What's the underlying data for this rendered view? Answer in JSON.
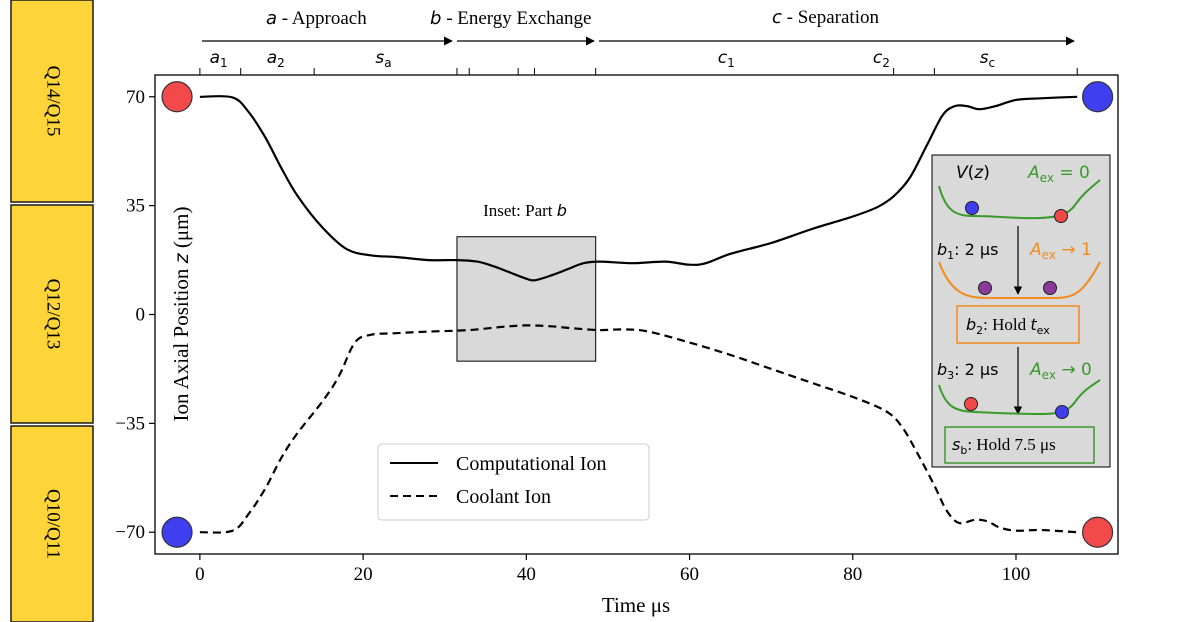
{
  "colors": {
    "computational": "#000000",
    "coolant": "#000000",
    "ion_red": "#f24a4a",
    "ion_blue": "#3f3ff0",
    "ion_purple": "#8a3a9a",
    "zone_fill": "#fdd53a",
    "zone_border": "#1a1a1a",
    "inset_fill": "#d9d9d9",
    "green": "#3a9a2c",
    "orange": "#f28a1c"
  },
  "zones": [
    {
      "label": "Q14/Q15"
    },
    {
      "label": "Q12/Q13"
    },
    {
      "label": "Q10/Q11"
    }
  ],
  "phases": {
    "a": {
      "letter": "a",
      "text": " - Approach"
    },
    "b": {
      "letter": "b",
      "text": " - Energy Exchange"
    },
    "c": {
      "letter": "c",
      "text": " - Separation"
    }
  },
  "subphases": [
    {
      "base": "a",
      "sub": "1",
      "t": 2.3
    },
    {
      "base": "a",
      "sub": "2",
      "t": 9.3
    },
    {
      "base": "s",
      "sub": "a",
      "t": 22.5
    },
    {
      "base": "c",
      "sub": "1",
      "t": 64.5
    },
    {
      "base": "c",
      "sub": "2",
      "t": 83.5
    },
    {
      "base": "s",
      "sub": "c",
      "t": 96.5
    }
  ],
  "top_ticks": [
    0,
    5,
    14,
    31.5,
    33,
    39,
    41,
    48.5,
    85,
    90,
    107.5
  ],
  "inset_label": {
    "prefix": "Inset: Part ",
    "letter": "b"
  },
  "chart_data": {
    "type": "line",
    "xlabel_prefix": "Time ",
    "xlabel_unit": "μs",
    "ylabel_prefix": "Ion Axial Position ",
    "ylabel_var": "z",
    "ylabel_unit": " (μm)",
    "xlim": [
      -5.5,
      112.5
    ],
    "ylim": [
      -77,
      77
    ],
    "xticks": [
      0,
      20,
      40,
      60,
      80,
      100
    ],
    "yticks": [
      70,
      35,
      0,
      -35,
      -70
    ],
    "ytick_labels": [
      "70",
      "35",
      "0",
      "−35",
      "−70"
    ],
    "legend_position": "bottom-center",
    "series": [
      {
        "name": "Computational Ion",
        "style": "solid",
        "points": [
          [
            0,
            70
          ],
          [
            4,
            69.8
          ],
          [
            6,
            65
          ],
          [
            8,
            57
          ],
          [
            10,
            47
          ],
          [
            12,
            38
          ],
          [
            15,
            28
          ],
          [
            18,
            21
          ],
          [
            21,
            19
          ],
          [
            24,
            18.5
          ],
          [
            28,
            17.5
          ],
          [
            31.5,
            17.5
          ],
          [
            34,
            17
          ],
          [
            36,
            15.5
          ],
          [
            38,
            13.5
          ],
          [
            40,
            11.5
          ],
          [
            41,
            11
          ],
          [
            43,
            12.5
          ],
          [
            45,
            14.5
          ],
          [
            47,
            16.5
          ],
          [
            49,
            17
          ],
          [
            53,
            16.5
          ],
          [
            57,
            17
          ],
          [
            60,
            16
          ],
          [
            62,
            16.5
          ],
          [
            65,
            19.5
          ],
          [
            70,
            23
          ],
          [
            75,
            27.5
          ],
          [
            80,
            31.5
          ],
          [
            83,
            34.5
          ],
          [
            85,
            38
          ],
          [
            87,
            44
          ],
          [
            89,
            54
          ],
          [
            91,
            64
          ],
          [
            92.5,
            67
          ],
          [
            94,
            67
          ],
          [
            95.5,
            66
          ],
          [
            97.5,
            67
          ],
          [
            100,
            69
          ],
          [
            103,
            69.5
          ],
          [
            107.5,
            70
          ]
        ]
      },
      {
        "name": "Coolant Ion",
        "style": "dashed",
        "points": [
          [
            0,
            -70
          ],
          [
            4,
            -69.5
          ],
          [
            6,
            -64
          ],
          [
            8,
            -56
          ],
          [
            10,
            -46
          ],
          [
            12,
            -38
          ],
          [
            15,
            -28
          ],
          [
            17,
            -20
          ],
          [
            19,
            -9
          ],
          [
            21,
            -6.5
          ],
          [
            24,
            -6
          ],
          [
            28,
            -5.5
          ],
          [
            33,
            -5
          ],
          [
            37,
            -4
          ],
          [
            40,
            -3.5
          ],
          [
            43,
            -3.8
          ],
          [
            46,
            -4.5
          ],
          [
            49,
            -5
          ],
          [
            52,
            -4.8
          ],
          [
            55,
            -5.5
          ],
          [
            60,
            -9
          ],
          [
            65,
            -13
          ],
          [
            70,
            -17.5
          ],
          [
            75,
            -22
          ],
          [
            80,
            -26.5
          ],
          [
            84,
            -31
          ],
          [
            86,
            -36
          ],
          [
            88,
            -45
          ],
          [
            90,
            -55
          ],
          [
            91.5,
            -63
          ],
          [
            93,
            -67
          ],
          [
            95,
            -66
          ],
          [
            96.5,
            -66.5
          ],
          [
            98,
            -68.5
          ],
          [
            100,
            -69.5
          ],
          [
            103,
            -69.3
          ],
          [
            107.5,
            -70
          ]
        ]
      }
    ],
    "ion_markers": [
      {
        "t": -2.8,
        "z": 70,
        "color": "red"
      },
      {
        "t": -2.8,
        "z": -70,
        "color": "blue"
      },
      {
        "t": 110,
        "z": 70,
        "color": "blue"
      },
      {
        "t": 110,
        "z": -70,
        "color": "red"
      }
    ],
    "inset_box": {
      "t0": 31.5,
      "t1": 48.5,
      "z0": -15,
      "z1": 25
    }
  },
  "diagram": {
    "v_label": "V(z)",
    "aex_sym": "A",
    "aex_sub": "ex",
    "aex_eq0": " = 0",
    "aex_to1": " → 1",
    "aex_to0": " → 0",
    "b1_base": "b",
    "b1_sub": "1",
    "b1_text": ": 2 μs",
    "b2_base": "b",
    "b2_sub": "2",
    "b2_text": ": Hold ",
    "b2_t": "t",
    "b2_tsub": "ex",
    "b3_base": "b",
    "b3_sub": "3",
    "b3_text": ": 2 μs",
    "sb_base": "s",
    "sb_sub": "b",
    "sb_text": ": Hold 7.5 μs"
  }
}
